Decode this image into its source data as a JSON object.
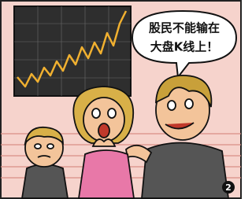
{
  "speech_bubble": {
    "lines": [
      "股民不能输在",
      "大盘K线上！"
    ]
  },
  "badge": "2"
}
